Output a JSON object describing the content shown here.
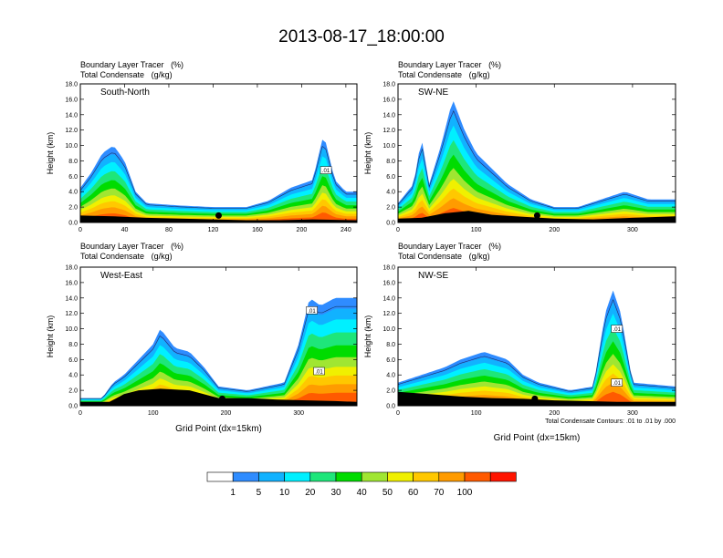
{
  "title": "2013-08-17_18:00:00",
  "panel_header": {
    "line1_name": "Boundary Layer Tracer",
    "line1_units": "(%)",
    "line2_name": "Total Condensate",
    "line2_units": "(g/kg)"
  },
  "colors": {
    "levels": [
      "#ffffff",
      "#2f8cff",
      "#11b2ff",
      "#00f0ff",
      "#1ee67a",
      "#00dc00",
      "#a0e632",
      "#f0f000",
      "#ffc800",
      "#ff9b00",
      "#ff5a00",
      "#ff1400"
    ],
    "terrain": "#000000",
    "contour": "#000000"
  },
  "colorbar": {
    "labels": [
      "1",
      "5",
      "10",
      "20",
      "30",
      "40",
      "50",
      "60",
      "70",
      "100"
    ]
  },
  "footnote": "Total Condensate Contours: .01 to .01 by .000",
  "chart_data": [
    {
      "type": "contour",
      "name": "South-North",
      "xlim": [
        0,
        250
      ],
      "ylim": [
        0,
        18
      ],
      "xticks": [
        0,
        40,
        80,
        120,
        160,
        200,
        240
      ],
      "yticks": [
        0.0,
        2.0,
        4.0,
        6.0,
        8.0,
        10.0,
        12.0,
        14.0,
        16.0,
        18.0
      ],
      "ylabel": "Height (km)",
      "xlabel": "",
      "marker_x": 125,
      "terrain": [
        [
          0,
          0.9
        ],
        [
          30,
          0.8
        ],
        [
          60,
          0.6
        ],
        [
          90,
          0.5
        ],
        [
          120,
          0.4
        ],
        [
          150,
          0.3
        ],
        [
          180,
          0.3
        ],
        [
          210,
          0.4
        ],
        [
          250,
          0.3
        ]
      ],
      "tracer_profile": [
        [
          0,
          4.5
        ],
        [
          10,
          6.5
        ],
        [
          20,
          9
        ],
        [
          30,
          10
        ],
        [
          40,
          8
        ],
        [
          50,
          4
        ],
        [
          60,
          2.5
        ],
        [
          90,
          2.2
        ],
        [
          120,
          2
        ],
        [
          150,
          2
        ],
        [
          170,
          2.8
        ],
        [
          190,
          4.5
        ],
        [
          210,
          5.5
        ],
        [
          220,
          11.5
        ],
        [
          230,
          5.5
        ],
        [
          240,
          4
        ],
        [
          250,
          4
        ]
      ],
      "labels": [
        {
          "x": 222,
          "y": 6.8,
          "text": ".01"
        }
      ]
    },
    {
      "type": "contour",
      "name": "SW-NE",
      "xlim": [
        0,
        355
      ],
      "ylim": [
        0,
        18
      ],
      "xticks": [
        0,
        100,
        200,
        300
      ],
      "yticks": [
        0.0,
        2.0,
        4.0,
        6.0,
        8.0,
        10.0,
        12.0,
        14.0,
        16.0,
        18.0
      ],
      "ylabel": "Height (km)",
      "xlabel": "",
      "marker_x": 178,
      "terrain": [
        [
          0,
          0.5
        ],
        [
          30,
          0.6
        ],
        [
          60,
          1.2
        ],
        [
          90,
          1.5
        ],
        [
          120,
          1
        ],
        [
          150,
          0.8
        ],
        [
          200,
          0.5
        ],
        [
          250,
          0.4
        ],
        [
          300,
          0.6
        ],
        [
          355,
          0.8
        ]
      ],
      "tracer_profile": [
        [
          0,
          2.5
        ],
        [
          20,
          5
        ],
        [
          30,
          11
        ],
        [
          40,
          5
        ],
        [
          55,
          10
        ],
        [
          70,
          16
        ],
        [
          85,
          12
        ],
        [
          100,
          9
        ],
        [
          120,
          7
        ],
        [
          140,
          5
        ],
        [
          170,
          3
        ],
        [
          200,
          2
        ],
        [
          230,
          2
        ],
        [
          260,
          3
        ],
        [
          290,
          4
        ],
        [
          320,
          3
        ],
        [
          355,
          3
        ]
      ],
      "labels": []
    },
    {
      "type": "contour",
      "name": "West-East",
      "xlim": [
        0,
        380
      ],
      "ylim": [
        0,
        18
      ],
      "xticks": [
        0,
        100,
        200,
        300
      ],
      "yticks": [
        0.0,
        2.0,
        4.0,
        6.0,
        8.0,
        10.0,
        12.0,
        14.0,
        16.0,
        18.0
      ],
      "ylabel": "Height (km)",
      "xlabel": "Grid Point (dx=15km)",
      "marker_x": 195,
      "terrain": [
        [
          0,
          0.5
        ],
        [
          40,
          0.5
        ],
        [
          60,
          1.5
        ],
        [
          80,
          2
        ],
        [
          110,
          2.2
        ],
        [
          150,
          2
        ],
        [
          190,
          1
        ],
        [
          230,
          1
        ],
        [
          270,
          0.8
        ],
        [
          310,
          0.7
        ],
        [
          350,
          0.6
        ],
        [
          380,
          0.5
        ]
      ],
      "tracer_profile": [
        [
          0,
          1
        ],
        [
          30,
          1
        ],
        [
          45,
          3
        ],
        [
          60,
          4
        ],
        [
          80,
          6
        ],
        [
          100,
          8
        ],
        [
          110,
          10
        ],
        [
          130,
          7.5
        ],
        [
          150,
          7
        ],
        [
          170,
          5
        ],
        [
          190,
          2.5
        ],
        [
          230,
          2
        ],
        [
          280,
          3
        ],
        [
          300,
          8
        ],
        [
          315,
          14
        ],
        [
          330,
          13
        ],
        [
          350,
          14
        ],
        [
          380,
          14
        ]
      ],
      "labels": [
        {
          "x": 318,
          "y": 12.4,
          "text": ".01"
        },
        {
          "x": 328,
          "y": 4.5,
          "text": ".01"
        }
      ]
    },
    {
      "type": "contour",
      "name": "NW-SE",
      "xlim": [
        0,
        355
      ],
      "ylim": [
        0,
        18
      ],
      "xticks": [
        0,
        100,
        200,
        300
      ],
      "yticks": [
        0.0,
        2.0,
        4.0,
        6.0,
        8.0,
        10.0,
        12.0,
        14.0,
        16.0,
        18.0
      ],
      "ylabel": "Height (km)",
      "xlabel": "Grid Point (dx=15km)",
      "marker_x": 175,
      "terrain": [
        [
          0,
          1.8
        ],
        [
          40,
          1.5
        ],
        [
          80,
          1.2
        ],
        [
          120,
          1
        ],
        [
          160,
          0.9
        ],
        [
          200,
          0.7
        ],
        [
          240,
          0.6
        ],
        [
          280,
          0.5
        ],
        [
          320,
          0.5
        ],
        [
          355,
          0.5
        ]
      ],
      "tracer_profile": [
        [
          0,
          3
        ],
        [
          30,
          4
        ],
        [
          60,
          5
        ],
        [
          80,
          6
        ],
        [
          110,
          7
        ],
        [
          140,
          6
        ],
        [
          160,
          4
        ],
        [
          180,
          3
        ],
        [
          220,
          2
        ],
        [
          250,
          2.5
        ],
        [
          265,
          12
        ],
        [
          275,
          15
        ],
        [
          285,
          12
        ],
        [
          300,
          3
        ],
        [
          355,
          2.5
        ]
      ],
      "labels": [
        {
          "x": 280,
          "y": 10,
          "text": ".01"
        },
        {
          "x": 280,
          "y": 3,
          "text": ".01"
        }
      ]
    }
  ]
}
